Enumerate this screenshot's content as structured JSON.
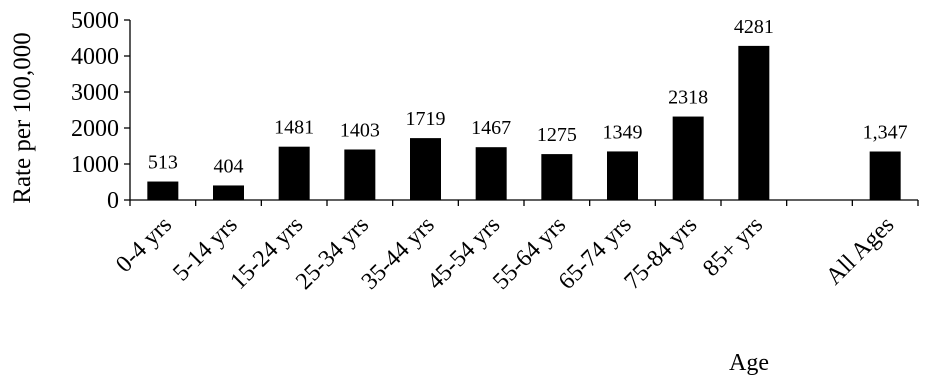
{
  "chart_data": {
    "type": "bar",
    "title": "",
    "xlabel": "Age",
    "ylabel": "Rate per 100,000",
    "ylim": [
      0,
      5000
    ],
    "yticks": [
      0,
      1000,
      2000,
      3000,
      4000,
      5000
    ],
    "grid": false,
    "legend": "none",
    "bar_color": "#000000",
    "categories": [
      "0-4 yrs",
      "5-14 yrs",
      "15-24 yrs",
      "25-34 yrs",
      "35-44 yrs",
      "45-54 yrs",
      "55-64 yrs",
      "65-74 yrs",
      "75-84 yrs",
      "85+ yrs",
      "",
      "All Ages"
    ],
    "values": [
      513,
      404,
      1481,
      1403,
      1719,
      1467,
      1275,
      1349,
      2318,
      4281,
      null,
      1347
    ],
    "data_labels": [
      "513",
      "404",
      "1481",
      "1403",
      "1719",
      "1467",
      "1275",
      "1349",
      "2318",
      "4281",
      "",
      "1,347"
    ]
  }
}
